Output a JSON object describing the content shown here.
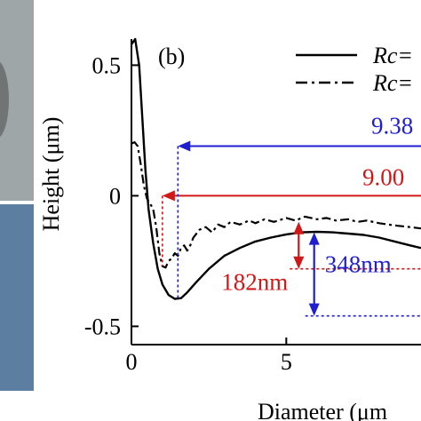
{
  "colors": {
    "photo_top": "#9ea6a8",
    "photo_bottom": "#5c7fa1",
    "blue": "#1f1fd0",
    "red": "#d01818",
    "axis": "#000000"
  },
  "chart_data": {
    "type": "line",
    "panel_label": "(b)",
    "xlabel": "Diameter (μm",
    "ylabel": "Height (μm)",
    "xlim": [
      0,
      9.35
    ],
    "ylim": [
      -0.57,
      0.6
    ],
    "xticks": [
      0,
      5
    ],
    "xtick_labels": [
      "0",
      "5"
    ],
    "yticks": [
      0.5,
      0,
      -0.5
    ],
    "ytick_labels": [
      "0.5",
      "0",
      "-0.5"
    ],
    "grid": false,
    "legend": {
      "placement": "top-right",
      "entries": [
        {
          "label": "Rc=",
          "style": "solid"
        },
        {
          "label": "Rc=",
          "style": "dashdot"
        }
      ]
    },
    "series": [
      {
        "style": "solid",
        "x": [
          0,
          0.12,
          0.25,
          0.35,
          0.45,
          0.55,
          0.7,
          0.85,
          1.0,
          1.2,
          1.4,
          1.6,
          1.8,
          2.1,
          2.5,
          3.0,
          3.5,
          4.0,
          4.5,
          5.0,
          5.5,
          6.0,
          6.5,
          7.0,
          7.5,
          8.0,
          8.5,
          9.0,
          9.35
        ],
        "y": [
          0.58,
          0.6,
          0.5,
          0.3,
          0.1,
          -0.05,
          -0.18,
          -0.28,
          -0.34,
          -0.38,
          -0.395,
          -0.392,
          -0.37,
          -0.33,
          -0.28,
          -0.23,
          -0.2,
          -0.175,
          -0.16,
          -0.148,
          -0.14,
          -0.138,
          -0.14,
          -0.145,
          -0.15,
          -0.16,
          -0.175,
          -0.19,
          -0.2
        ]
      },
      {
        "style": "dashdot",
        "x": [
          0,
          0.1,
          0.2,
          0.3,
          0.4,
          0.5,
          0.6,
          0.7,
          0.8,
          0.9,
          1.0,
          1.1,
          1.2,
          1.3,
          1.4,
          1.5,
          1.6,
          1.7,
          1.8,
          1.9,
          2.0,
          2.2,
          2.4,
          2.6,
          2.8,
          3.0,
          3.2,
          3.5,
          3.8,
          4.0,
          4.3,
          4.6,
          5.0,
          5.3,
          5.6,
          6.0,
          6.3,
          6.6,
          7.0,
          7.3,
          7.6,
          8.0,
          8.3,
          8.6,
          9.0,
          9.35
        ],
        "y": [
          0.2,
          0.205,
          0.19,
          0.12,
          0.04,
          -0.01,
          -0.03,
          -0.05,
          -0.12,
          -0.22,
          -0.27,
          -0.275,
          -0.25,
          -0.24,
          -0.22,
          -0.23,
          -0.2,
          -0.19,
          -0.21,
          -0.19,
          -0.16,
          -0.13,
          -0.12,
          -0.14,
          -0.11,
          -0.12,
          -0.1,
          -0.11,
          -0.095,
          -0.105,
          -0.09,
          -0.1,
          -0.085,
          -0.095,
          -0.08,
          -0.09,
          -0.085,
          -0.095,
          -0.09,
          -0.1,
          -0.095,
          -0.105,
          -0.11,
          -0.115,
          -0.12,
          -0.125
        ]
      }
    ],
    "annotations": [
      {
        "label": "9.38",
        "color": "blue",
        "y": 0.19,
        "x_from": 1.5,
        "x_to": 9.35
      },
      {
        "label": "9.00",
        "color": "red",
        "y": 0.0,
        "x_from": 1.0,
        "x_to": 9.35
      },
      {
        "label": "182nm",
        "color": "red",
        "x": 5.4,
        "y_from": -0.1,
        "y_to": -0.28
      },
      {
        "label": "348nm",
        "color": "blue",
        "x": 5.9,
        "y_from": -0.14,
        "y_to": -0.46
      }
    ]
  }
}
